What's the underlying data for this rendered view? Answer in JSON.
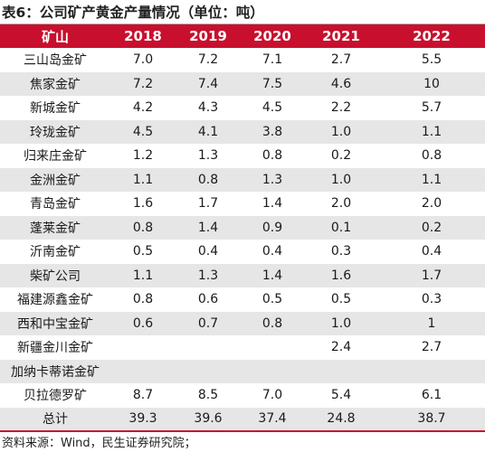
{
  "title": "表6：公司矿产黄金产量情况（单位：吨）",
  "columns": [
    "矿山",
    "2018",
    "2019",
    "2020",
    "2021",
    "2022"
  ],
  "rows": [
    [
      "三山岛金矿",
      "7.0",
      "7.2",
      "7.1",
      "2.7",
      "5.5"
    ],
    [
      "焦家金矿",
      "7.2",
      "7.4",
      "7.5",
      "4.6",
      "10"
    ],
    [
      "新城金矿",
      "4.2",
      "4.3",
      "4.5",
      "2.2",
      "5.7"
    ],
    [
      "玲珑金矿",
      "4.5",
      "4.1",
      "3.8",
      "1.0",
      "1.1"
    ],
    [
      "归来庄金矿",
      "1.2",
      "1.3",
      "0.8",
      "0.2",
      "0.8"
    ],
    [
      "金洲金矿",
      "1.1",
      "0.8",
      "1.3",
      "1.0",
      "1.1"
    ],
    [
      "青岛金矿",
      "1.6",
      "1.7",
      "1.4",
      "2.0",
      "2.0"
    ],
    [
      "蓬莱金矿",
      "0.8",
      "1.4",
      "0.9",
      "0.1",
      "0.2"
    ],
    [
      "沂南金矿",
      "0.5",
      "0.4",
      "0.4",
      "0.3",
      "0.4"
    ],
    [
      "柴矿公司",
      "1.1",
      "1.3",
      "1.4",
      "1.6",
      "1.7"
    ],
    [
      "福建源鑫金矿",
      "0.8",
      "0.6",
      "0.5",
      "0.5",
      "0.3"
    ],
    [
      "西和中宝金矿",
      "0.6",
      "0.7",
      "0.8",
      "1.0",
      "1"
    ],
    [
      "新疆金川金矿",
      "",
      "",
      "",
      "2.4",
      "2.7"
    ],
    [
      "加纳卡蒂诺金矿",
      "",
      "",
      "",
      "",
      ""
    ],
    [
      "贝拉德罗矿",
      "8.7",
      "8.5",
      "7.0",
      "5.4",
      "6.1"
    ],
    [
      "总计",
      "39.3",
      "39.6",
      "37.4",
      "24.8",
      "38.7"
    ]
  ],
  "source": "资料来源：Wind，民生证券研究院；",
  "colors": {
    "header_bg": "#c8102e",
    "header_text": "#ffffff",
    "stripe": "#e6e6e6"
  }
}
